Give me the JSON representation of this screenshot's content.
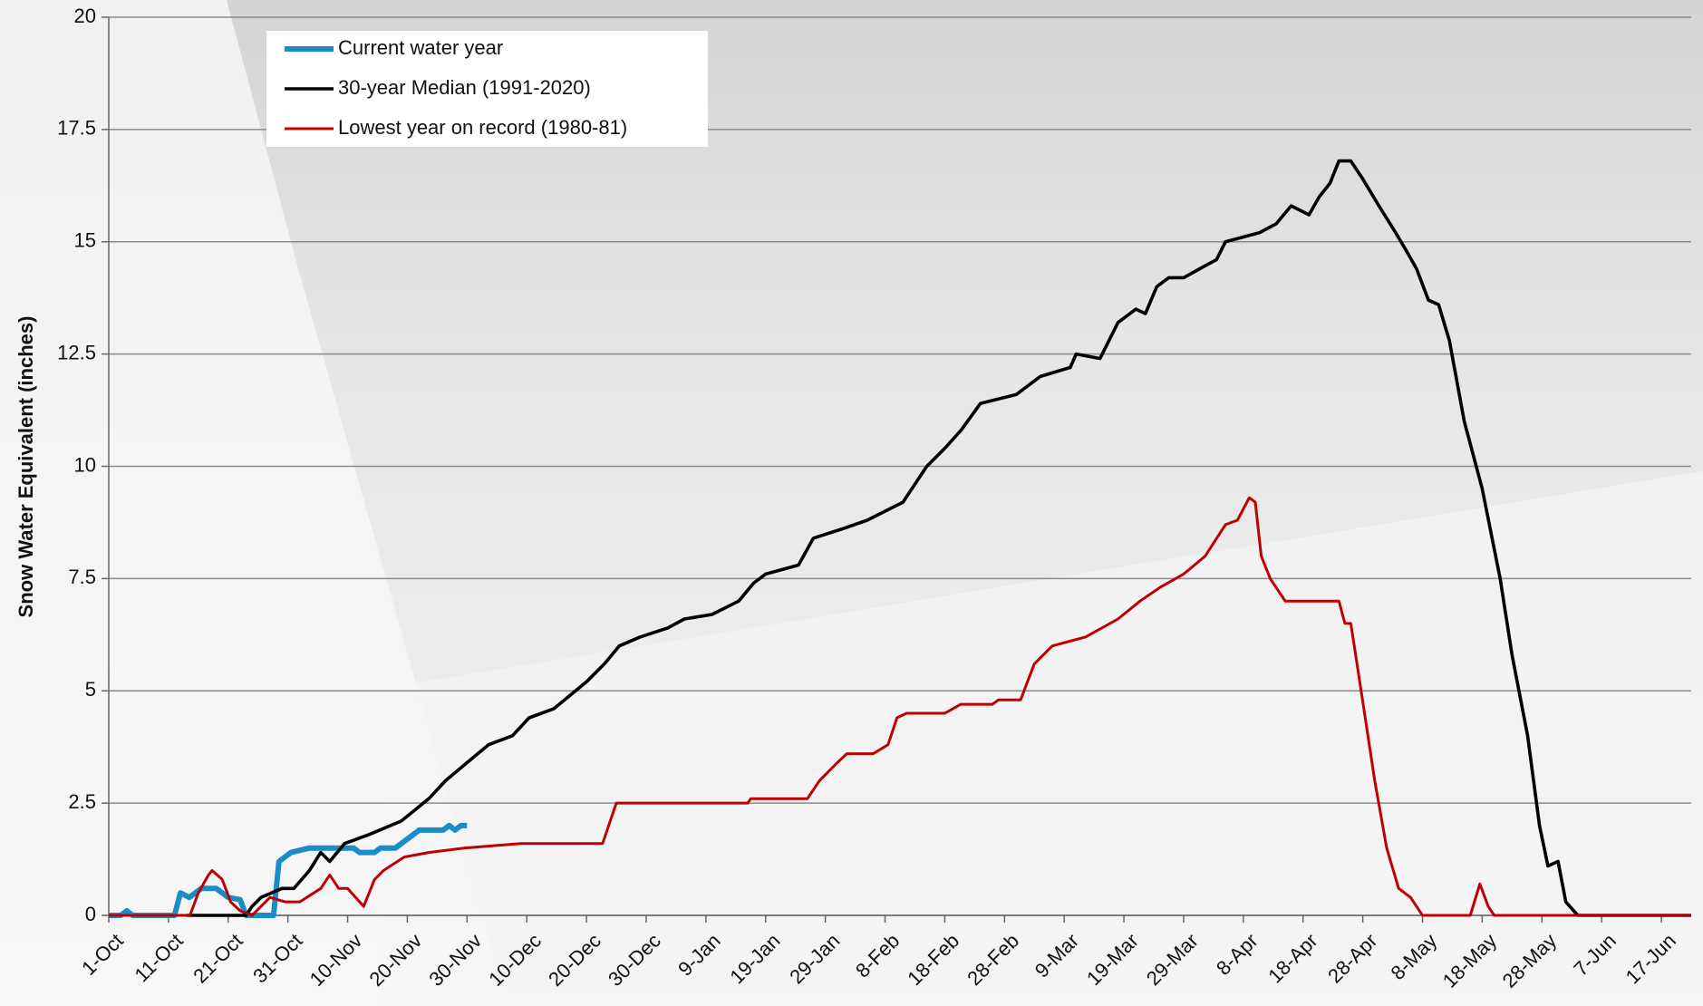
{
  "chart_data": {
    "type": "line",
    "y_label": "Snow Water Equivalent (inches)",
    "xlim": [
      0,
      265
    ],
    "ylim": [
      0,
      20
    ],
    "xticks": [
      {
        "value": 0,
        "label": "1-Oct"
      },
      {
        "value": 10,
        "label": "11-Oct"
      },
      {
        "value": 20,
        "label": "21-Oct"
      },
      {
        "value": 30,
        "label": "31-Oct"
      },
      {
        "value": 40,
        "label": "10-Nov"
      },
      {
        "value": 50,
        "label": "20-Nov"
      },
      {
        "value": 60,
        "label": "30-Nov"
      },
      {
        "value": 70,
        "label": "10-Dec"
      },
      {
        "value": 80,
        "label": "20-Dec"
      },
      {
        "value": 90,
        "label": "30-Dec"
      },
      {
        "value": 100,
        "label": "9-Jan"
      },
      {
        "value": 110,
        "label": "19-Jan"
      },
      {
        "value": 120,
        "label": "29-Jan"
      },
      {
        "value": 130,
        "label": "8-Feb"
      },
      {
        "value": 140,
        "label": "18-Feb"
      },
      {
        "value": 150,
        "label": "28-Feb"
      },
      {
        "value": 160,
        "label": "9-Mar"
      },
      {
        "value": 170,
        "label": "19-Mar"
      },
      {
        "value": 180,
        "label": "29-Mar"
      },
      {
        "value": 190,
        "label": "8-Apr"
      },
      {
        "value": 200,
        "label": "18-Apr"
      },
      {
        "value": 210,
        "label": "28-Apr"
      },
      {
        "value": 220,
        "label": "8-May"
      },
      {
        "value": 230,
        "label": "18-May"
      },
      {
        "value": 240,
        "label": "28-May"
      },
      {
        "value": 250,
        "label": "7-Jun"
      },
      {
        "value": 260,
        "label": "17-Jun"
      }
    ],
    "yticks": [
      0,
      2.5,
      5,
      7.5,
      10,
      12.5,
      15,
      17.5,
      20
    ],
    "grid": true,
    "legend": "top-left",
    "series": [
      {
        "name": "Current water year",
        "color": "#1a8cc8",
        "width": 5,
        "x": [
          0,
          2,
          3,
          4,
          11,
          12,
          13.5,
          15.5,
          18,
          19,
          20,
          22,
          23,
          27.6,
          28.5,
          30.5,
          33.6,
          41,
          42,
          44.5,
          45.5,
          48,
          50,
          52,
          56,
          57,
          58,
          59,
          60
        ],
        "values": [
          0,
          0,
          0.1,
          0,
          0,
          0.5,
          0.4,
          0.6,
          0.6,
          0.5,
          0.4,
          0.35,
          0,
          0,
          1.2,
          1.4,
          1.5,
          1.5,
          1.4,
          1.4,
          1.5,
          1.5,
          1.7,
          1.9,
          1.9,
          2.0,
          1.9,
          2.0,
          2.0
        ]
      },
      {
        "name": "30-year Median (1991-2020)",
        "color": "#000000",
        "width": 3,
        "x": [
          13,
          23,
          24,
          25.5,
          29,
          31,
          33.6,
          35.5,
          37,
          39.5,
          43.6,
          49,
          53.6,
          56.4,
          60,
          63.6,
          67.6,
          70.4,
          74.5,
          80,
          83,
          85.5,
          89,
          93.6,
          96.4,
          101,
          105.5,
          108,
          110,
          115.5,
          118,
          122.7,
          127,
          133,
          137,
          140,
          142.7,
          146,
          152,
          156,
          161,
          162,
          166,
          169,
          172,
          173.6,
          175.5,
          177.5,
          180,
          182.7,
          185.5,
          187,
          192.7,
          195.5,
          198,
          201,
          202.7,
          204.5,
          206,
          208,
          210,
          212.7,
          215.5,
          217.3,
          219,
          221,
          222.7,
          224.5,
          227,
          230,
          233,
          235,
          237.6,
          239.6,
          241,
          242.7,
          244,
          246,
          265
        ],
        "values": [
          0,
          0,
          0.2,
          0.4,
          0.6,
          0.6,
          1.0,
          1.4,
          1.2,
          1.6,
          1.8,
          2.1,
          2.6,
          3.0,
          3.4,
          3.8,
          4.0,
          4.4,
          4.6,
          5.2,
          5.6,
          6.0,
          6.2,
          6.4,
          6.6,
          6.7,
          7.0,
          7.4,
          7.6,
          7.8,
          8.4,
          8.6,
          8.8,
          9.2,
          10.0,
          10.4,
          10.8,
          11.4,
          11.6,
          12.0,
          12.2,
          12.5,
          12.4,
          13.2,
          13.5,
          13.4,
          14.0,
          14.2,
          14.2,
          14.4,
          14.6,
          15.0,
          15.2,
          15.4,
          15.8,
          15.6,
          16.0,
          16.3,
          16.8,
          16.8,
          16.4,
          15.8,
          15.2,
          14.8,
          14.4,
          13.7,
          13.6,
          12.8,
          11.0,
          9.5,
          7.5,
          5.8,
          4.0,
          2.0,
          1.1,
          1.2,
          0.3,
          0,
          0
        ]
      },
      {
        "name": "Lowest year on record (1980-81)",
        "color": "#c00000",
        "width": 2.5,
        "x": [
          0,
          13.6,
          15,
          16.7,
          17.3,
          19,
          20.4,
          22,
          24,
          27,
          29.5,
          32,
          35.5,
          37,
          38.5,
          40,
          42.7,
          44.5,
          46,
          49.5,
          53.6,
          59.5,
          69,
          82.7,
          85,
          107,
          107.5,
          117,
          119,
          122,
          123.6,
          128,
          130.5,
          132,
          133.6,
          140,
          142.7,
          148,
          149,
          152.7,
          155,
          158,
          163.6,
          169,
          172.7,
          176,
          180,
          183.6,
          187,
          189,
          191,
          192,
          193,
          194.5,
          197,
          206,
          207,
          208,
          209.5,
          212,
          214,
          216,
          218,
          220,
          228,
          229.6,
          231,
          232,
          265
        ],
        "values": [
          0,
          0,
          0.5,
          0.9,
          1.0,
          0.8,
          0.3,
          0.1,
          0,
          0.4,
          0.3,
          0.3,
          0.6,
          0.9,
          0.6,
          0.6,
          0.2,
          0.8,
          1.0,
          1.3,
          1.4,
          1.5,
          1.6,
          1.6,
          2.5,
          2.5,
          2.6,
          2.6,
          3.0,
          3.4,
          3.6,
          3.6,
          3.8,
          4.4,
          4.5,
          4.5,
          4.7,
          4.7,
          4.8,
          4.8,
          5.6,
          6.0,
          6.2,
          6.6,
          7.0,
          7.3,
          7.6,
          8.0,
          8.7,
          8.8,
          9.3,
          9.2,
          8.0,
          7.5,
          7.0,
          7.0,
          6.5,
          6.5,
          5.2,
          3.0,
          1.5,
          0.6,
          0.4,
          0,
          0,
          0.7,
          0.2,
          0,
          0
        ]
      }
    ]
  }
}
